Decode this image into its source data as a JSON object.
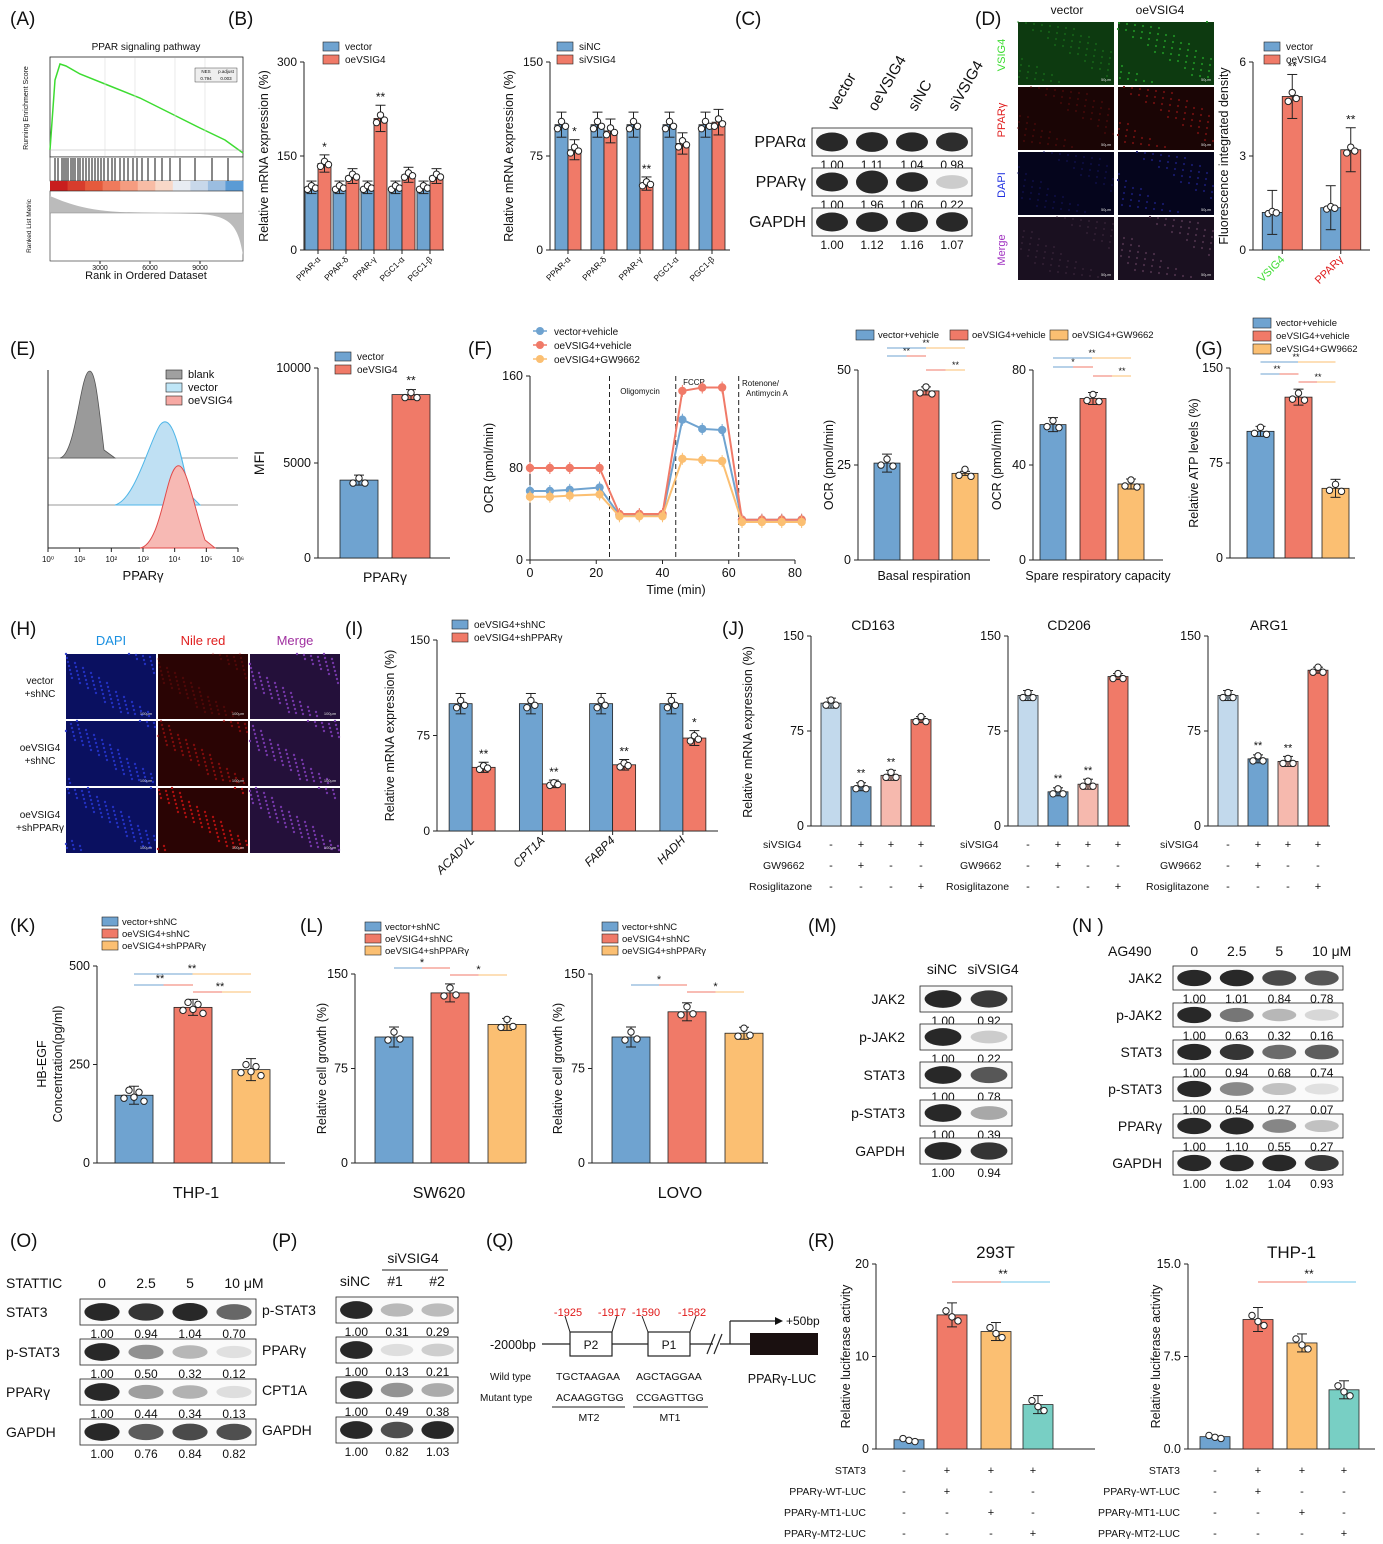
{
  "colors": {
    "blue": "#6fa3d0",
    "red": "#f07a68",
    "orange": "#fbbf72",
    "teal": "#78cfc4",
    "lightblue": "#c2d9ec",
    "pink": "#f6b9ae",
    "gray": "#a0a0a0",
    "green": "#3ddc31",
    "black": "#1a1a1a"
  },
  "icons": [
    "dashed-stage-line",
    "significance-bracket",
    "promoter-box",
    "luciferase-reporter-box"
  ],
  "panels": {
    "A": "(A)",
    "B": "(B)",
    "C": "(C)",
    "D": "(D)",
    "E": "(E)",
    "F": "(F)",
    "G": "(G)",
    "H": "(H)",
    "I": "(I)",
    "J": "(J)",
    "K": "(K)",
    "L": "(L)",
    "M": "(M)",
    "N": "(N )",
    "O": "(O)",
    "P": "(P)",
    "Q": "(Q)",
    "R": "(R)"
  },
  "chart_data": [
    {
      "id": "A",
      "type": "line",
      "title": "PPAR signaling pathway",
      "ylabel_top": "Running Enrichment Score",
      "ylabel_bottom": "Ranked List Metric",
      "xlabel": "Rank in Ordered Dataset",
      "xticks": [
        "3000",
        "6000",
        "9000"
      ],
      "table": {
        "headers": [
          "NES",
          "p.adjust"
        ],
        "values": [
          "0.794",
          "0.003"
        ]
      }
    },
    {
      "id": "B1",
      "type": "bar",
      "ylabel": "Relative mRNA expression (%)",
      "ylim": [
        0,
        300
      ],
      "yticks": [
        "0",
        "150",
        "300"
      ],
      "categories": [
        "PPAR-α",
        "PPAR-δ",
        "PPAR-γ",
        "PGC1-α",
        "PGC1-β"
      ],
      "series": [
        {
          "name": "vector",
          "values": [
            100,
            100,
            100,
            100,
            100
          ]
        },
        {
          "name": "oeVSIG4",
          "values": [
            138,
            118,
            210,
            120,
            118
          ]
        }
      ],
      "sig": [
        "*",
        "",
        "**",
        "",
        ""
      ]
    },
    {
      "id": "B2",
      "type": "bar",
      "ylabel": "Relative mRNA expression (%)",
      "ylim": [
        0,
        150
      ],
      "yticks": [
        "0",
        "75",
        "150"
      ],
      "categories": [
        "PPAR-α",
        "PPAR-δ",
        "PPAR-γ",
        "PGC1-α",
        "PGC1-β"
      ],
      "series": [
        {
          "name": "siNC",
          "values": [
            100,
            100,
            100,
            100,
            100
          ]
        },
        {
          "name": "siVSIG4",
          "values": [
            80,
            95,
            53,
            85,
            102
          ]
        }
      ],
      "sig": [
        "*",
        "",
        "**",
        "",
        ""
      ]
    },
    {
      "id": "C",
      "type": "table",
      "lanes": [
        "vector",
        "oeVSIG4",
        "siNC",
        "siVSIG4"
      ],
      "rows": [
        {
          "label": "PPARα",
          "values": [
            "1.00",
            "1.11",
            "1.04",
            "0.98"
          ]
        },
        {
          "label": "PPARγ",
          "values": [
            "1.00",
            "1.96",
            "1.06",
            "0.22"
          ]
        },
        {
          "label": "GAPDH",
          "values": [
            "1.00",
            "1.12",
            "1.16",
            "1.07"
          ]
        }
      ]
    },
    {
      "id": "D",
      "type": "bar",
      "columns": [
        "vector",
        "oeVSIG4"
      ],
      "rows": [
        "VSIG4",
        "PPARγ",
        "DAPI",
        "Merge"
      ],
      "scale": "50μm",
      "ylabel": "Fluorescence integrated density",
      "ylim": [
        0,
        6
      ],
      "yticks": [
        "0",
        "3",
        "6"
      ],
      "categories": [
        "VSIG4",
        "PPARγ"
      ],
      "series": [
        {
          "name": "vector",
          "values": [
            1.2,
            1.35
          ]
        },
        {
          "name": "oeVSIG4",
          "values": [
            4.9,
            3.2
          ]
        }
      ],
      "sig": [
        "**",
        "**"
      ]
    },
    {
      "id": "E1",
      "type": "area",
      "legend": [
        "blank",
        "vector",
        "oeVSIG4"
      ],
      "xlabel": "PPARγ",
      "xticks": [
        "10⁰",
        "10¹",
        "10²",
        "10³",
        "10⁴",
        "10⁵",
        "10⁶"
      ]
    },
    {
      "id": "E2",
      "type": "bar",
      "ylabel": "MFI",
      "xlabel": "PPARγ",
      "ylim": [
        0,
        10000
      ],
      "yticks": [
        "0",
        "5000",
        "10000"
      ],
      "series": [
        {
          "name": "vector",
          "values": [
            4100
          ]
        },
        {
          "name": "oeVSIG4",
          "values": [
            8600
          ]
        }
      ],
      "sig": [
        "**"
      ]
    },
    {
      "id": "F1",
      "type": "line",
      "xlabel": "Time (min)",
      "ylabel": "OCR (pmol/min)",
      "ylim": [
        0,
        160
      ],
      "yticks": [
        "0",
        "80",
        "160"
      ],
      "xticks": [
        "0",
        "20",
        "40",
        "60",
        "80"
      ],
      "annotations": [
        "Oligomycin",
        "FCCP",
        "Rotenone/ Antimycin A"
      ],
      "x": [
        0,
        6,
        12,
        21,
        27,
        33,
        40,
        46,
        52,
        58,
        64,
        70,
        76,
        82
      ],
      "series": [
        {
          "name": "vector+vehicle",
          "values": [
            60,
            60,
            61,
            63,
            39,
            39,
            39,
            122,
            114,
            113,
            35,
            35,
            35,
            35
          ]
        },
        {
          "name": "oeVSIG4+vehicle",
          "values": [
            80,
            80,
            80,
            80,
            40,
            40,
            40,
            147,
            150,
            150,
            35,
            35,
            35,
            35
          ]
        },
        {
          "name": "oeVSIG4+GW9662",
          "values": [
            55,
            55,
            56,
            57,
            38,
            38,
            38,
            88,
            87,
            86,
            33,
            33,
            33,
            33
          ]
        }
      ]
    },
    {
      "id": "F2",
      "type": "bar",
      "ylabel": "OCR (pmol/min)",
      "xlabel": "Basal respiration",
      "ylim": [
        0,
        50
      ],
      "yticks": [
        "0",
        "25",
        "50"
      ],
      "series": [
        {
          "name": "vector+vehicle",
          "values": [
            25.5
          ]
        },
        {
          "name": "oeVSIG4+vehicle",
          "values": [
            44.5
          ]
        },
        {
          "name": "oeVSIG4+GW9662",
          "values": [
            22.8
          ]
        }
      ],
      "brackets": [
        "**",
        "**",
        "**"
      ]
    },
    {
      "id": "F3",
      "type": "bar",
      "ylabel": "OCR (pmol/min)",
      "xlabel": "Spare respiratory capacity",
      "ylim": [
        0,
        80
      ],
      "yticks": [
        "0",
        "40",
        "80"
      ],
      "series": [
        {
          "name": "vector+vehicle",
          "values": [
            57
          ]
        },
        {
          "name": "oeVSIG4+vehicle",
          "values": [
            68
          ]
        },
        {
          "name": "oeVSIG4+GW9662",
          "values": [
            32
          ]
        }
      ],
      "brackets": [
        "*",
        "**",
        "**"
      ]
    },
    {
      "id": "G",
      "type": "bar",
      "ylabel": "Relative ATP levels (%)",
      "ylim": [
        0,
        150
      ],
      "yticks": [
        "0",
        "75",
        "150"
      ],
      "series": [
        {
          "name": "vector+vehicle",
          "values": [
            100
          ]
        },
        {
          "name": "oeVSIG4+vehicle",
          "values": [
            127
          ]
        },
        {
          "name": "oeVSIG4+GW9662",
          "values": [
            55
          ]
        }
      ],
      "brackets": [
        "**",
        "**",
        "**"
      ]
    },
    {
      "id": "H",
      "type": "table",
      "columns": [
        "DAPI",
        "Nile red",
        "Merge"
      ],
      "rows": [
        "vector +shNC",
        "oeVSIG4 +shNC",
        "oeVSIG4 +shPPARγ"
      ],
      "scale": "100μm"
    },
    {
      "id": "I",
      "type": "bar",
      "ylabel": "Relative mRNA expression (%)",
      "ylim": [
        0,
        150
      ],
      "yticks": [
        "0",
        "75",
        "150"
      ],
      "categories": [
        "ACADVL",
        "CPT1A",
        "FABP4",
        "HADH"
      ],
      "series": [
        {
          "name": "oeVSIG4+shNC",
          "values": [
            100,
            100,
            100,
            100
          ]
        },
        {
          "name": "oeVSIG4+shPPARγ",
          "values": [
            50,
            37,
            52,
            73
          ]
        }
      ],
      "sig": [
        "**",
        "**",
        "**",
        "*"
      ]
    },
    {
      "id": "J",
      "type": "bar",
      "ylabel": "Relative mRNA expression (%)",
      "ylim": [
        0,
        150
      ],
      "yticks": [
        "0",
        "75",
        "150"
      ],
      "row_labels": [
        "siVSIG4",
        "GW9662",
        "Rosiglitazone"
      ],
      "row_signs": [
        [
          "-",
          "+",
          "+",
          "+"
        ],
        [
          "-",
          "+",
          "-",
          "-"
        ],
        [
          "-",
          "-",
          "-",
          "+"
        ]
      ],
      "subcharts": [
        {
          "title": "CD163",
          "values": [
            97,
            31,
            40,
            84
          ],
          "sig": [
            "",
            "**",
            "**",
            ""
          ]
        },
        {
          "title": "CD206",
          "values": [
            103,
            27,
            33,
            118
          ],
          "sig": [
            "",
            "**",
            "**",
            ""
          ]
        },
        {
          "title": "ARG1",
          "values": [
            103,
            53,
            51,
            123
          ],
          "sig": [
            "",
            "**",
            "**",
            ""
          ]
        }
      ]
    },
    {
      "id": "K",
      "type": "bar",
      "ylabel": "HB-EGF Concentration(pg/ml)",
      "xlabel": "THP-1",
      "ylim": [
        0,
        500
      ],
      "yticks": [
        "0",
        "250",
        "500"
      ],
      "series": [
        {
          "name": "vector+shNC",
          "values": [
            172
          ]
        },
        {
          "name": "oeVSIG4+shNC",
          "values": [
            395
          ]
        },
        {
          "name": "oeVSIG4+shPPARγ",
          "values": [
            237
          ]
        }
      ],
      "brackets": [
        "**",
        "**",
        "**"
      ]
    },
    {
      "id": "L",
      "type": "bar",
      "ylabel": "Relative cell growth (%)",
      "ylim": [
        0,
        150
      ],
      "yticks": [
        "0",
        "75",
        "150"
      ],
      "legend": [
        "vector+shNC",
        "oeVSIG4+shNC",
        "oeVSIG4+shPPARγ"
      ],
      "subcharts": [
        {
          "title": "SW620",
          "values": [
            100,
            135,
            110
          ],
          "brackets": [
            "*",
            "*"
          ]
        },
        {
          "title": "LOVO",
          "values": [
            100,
            120,
            103
          ],
          "brackets": [
            "*",
            "*"
          ]
        }
      ]
    },
    {
      "id": "M",
      "type": "table",
      "lanes": [
        "siNC",
        "siVSIG4"
      ],
      "rows": [
        {
          "label": "JAK2",
          "values": [
            "1.00",
            "0.92"
          ]
        },
        {
          "label": "p-JAK2",
          "values": [
            "1.00",
            "0.22"
          ]
        },
        {
          "label": "STAT3",
          "values": [
            "1.00",
            "0.78"
          ]
        },
        {
          "label": "p-STAT3",
          "values": [
            "1.00",
            "0.39"
          ]
        },
        {
          "label": "GAPDH",
          "values": [
            "1.00",
            "0.94"
          ]
        }
      ]
    },
    {
      "id": "N",
      "type": "table",
      "treatment": "AG490",
      "lanes": [
        "0",
        "2.5",
        "5",
        "10 μM"
      ],
      "rows": [
        {
          "label": "JAK2",
          "values": [
            "1.00",
            "1.01",
            "0.84",
            "0.78"
          ]
        },
        {
          "label": "p-JAK2",
          "values": [
            "1.00",
            "0.63",
            "0.32",
            "0.16"
          ]
        },
        {
          "label": "STAT3",
          "values": [
            "1.00",
            "0.94",
            "0.68",
            "0.74"
          ]
        },
        {
          "label": "p-STAT3",
          "values": [
            "1.00",
            "0.54",
            "0.27",
            "0.07"
          ]
        },
        {
          "label": "PPARγ",
          "values": [
            "1.00",
            "1.10",
            "0.55",
            "0.27"
          ]
        },
        {
          "label": "GAPDH",
          "values": [
            "1.00",
            "1.02",
            "1.04",
            "0.93"
          ]
        }
      ]
    },
    {
      "id": "O",
      "type": "table",
      "treatment": "STATTIC",
      "lanes": [
        "0",
        "2.5",
        "5",
        "10  μM"
      ],
      "rows": [
        {
          "label": "STAT3",
          "values": [
            "1.00",
            "0.94",
            "1.04",
            "0.70"
          ]
        },
        {
          "label": "p-STAT3",
          "values": [
            "1.00",
            "0.50",
            "0.32",
            "0.12"
          ]
        },
        {
          "label": "PPARγ",
          "values": [
            "1.00",
            "0.44",
            "0.34",
            "0.13"
          ]
        },
        {
          "label": "GAPDH",
          "values": [
            "1.00",
            "0.76",
            "0.84",
            "0.82"
          ]
        }
      ]
    },
    {
      "id": "P",
      "type": "table",
      "group": "siVSIG4",
      "lanes": [
        "siNC",
        "#1",
        "#2"
      ],
      "rows": [
        {
          "label": "p-STAT3",
          "values": [
            "1.00",
            "0.31",
            "0.29"
          ]
        },
        {
          "label": "PPARγ",
          "values": [
            "1.00",
            "0.13",
            "0.21"
          ]
        },
        {
          "label": "CPT1A",
          "values": [
            "1.00",
            "0.49",
            "0.38"
          ]
        },
        {
          "label": "GAPDH",
          "values": [
            "1.00",
            "0.82",
            "1.03"
          ]
        }
      ]
    },
    {
      "id": "Q",
      "type": "table",
      "start": "-2000bp",
      "end": "+50bp",
      "p2": {
        "name": "P2",
        "from": "-1925",
        "to": "-1917"
      },
      "p1": {
        "name": "P1",
        "from": "-1590",
        "to": "-1582"
      },
      "wild_label": "Wild type",
      "mutant_label": "Mutant type",
      "wild": [
        "TGCTAAGAA",
        "AGCTAGGAA"
      ],
      "mutant": [
        "ACAAGGTGG",
        "CCGAGTTGG"
      ],
      "mt": [
        "MT2",
        "MT1"
      ],
      "reporter": "PPARγ-LUC"
    },
    {
      "id": "R",
      "type": "bar",
      "ylabel": "Relative luciferase activity",
      "row_labels": [
        "STAT3",
        "PPARγ-WT-LUC",
        "PPARγ-MT1-LUC",
        "PPARγ-MT2-LUC"
      ],
      "row_signs": [
        [
          "-",
          "+",
          "+",
          "+"
        ],
        [
          "-",
          "+",
          "-",
          "-"
        ],
        [
          "-",
          "-",
          "+",
          "-"
        ],
        [
          "-",
          "-",
          "-",
          "+"
        ]
      ],
      "subcharts": [
        {
          "title": "293T",
          "ylim": [
            0,
            20
          ],
          "yticks": [
            "0",
            "10",
            "20"
          ],
          "values": [
            1,
            14.5,
            12.7,
            4.8
          ],
          "sig": "**"
        },
        {
          "title": "THP-1",
          "ylim": [
            0,
            15
          ],
          "yticks": [
            "0.0",
            "7.5",
            "15.0"
          ],
          "values": [
            1,
            10.5,
            8.6,
            4.8
          ],
          "sig": "**"
        }
      ]
    }
  ]
}
